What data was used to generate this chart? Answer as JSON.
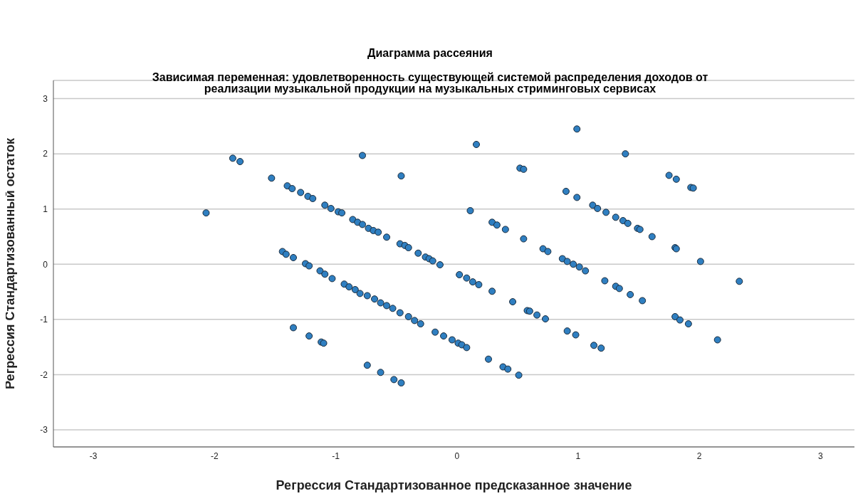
{
  "chart_data": {
    "type": "scatter",
    "title": "Диаграмма рассеяния",
    "subtitle": "Зависимая переменная: удовлетворенность существующей системой распределения доходов от\nреализации музыкальной продукции на музыкальных стриминговых сервисах",
    "xlabel": "Регрессия Стандартизованное предсказанное значение",
    "ylabel": "Регрессия Стандартизованный остаток",
    "x": [
      -2.07,
      -1.85,
      -1.79,
      -1.53,
      -0.78,
      -0.46,
      0.16,
      0.99,
      0.52,
      0.55,
      1.39,
      1.75,
      1.81,
      1.93,
      1.95,
      -1.4,
      -1.36,
      -1.29,
      -1.23,
      -1.19,
      -1.09,
      -1.04,
      -0.98,
      -0.95,
      -0.86,
      -0.82,
      -0.78,
      -0.73,
      -0.69,
      -0.65,
      -0.58,
      -0.47,
      -0.43,
      -0.4,
      -0.32,
      -0.26,
      -0.23,
      -0.2,
      -0.14,
      0.02,
      0.08,
      0.13,
      0.18,
      0.29,
      0.46,
      0.58,
      0.6,
      0.66,
      0.73,
      -1.44,
      -1.41,
      -1.35,
      -1.25,
      -1.22,
      -1.13,
      -1.09,
      -1.03,
      -0.93,
      -0.89,
      -0.84,
      -0.8,
      -0.74,
      -0.68,
      -0.63,
      -0.58,
      -0.53,
      -0.47,
      -0.4,
      -0.35,
      -0.3,
      -0.18,
      -0.11,
      -0.04,
      0.01,
      0.04,
      0.08,
      0.26,
      0.38,
      0.42,
      0.51,
      0.11,
      0.29,
      0.33,
      0.4,
      0.55,
      0.71,
      0.75,
      0.87,
      0.91,
      0.96,
      1.01,
      1.06,
      1.22,
      1.31,
      1.34,
      1.43,
      1.53,
      0.9,
      0.99,
      1.12,
      1.16,
      1.23,
      1.31,
      1.37,
      1.41,
      1.49,
      1.51,
      1.61,
      1.8,
      1.81,
      2.01,
      2.33,
      1.8,
      1.84,
      1.91,
      2.15,
      0.91,
      0.98,
      1.13,
      1.19,
      -1.35,
      -1.22,
      -1.12,
      -1.1,
      -0.74,
      -0.63,
      -0.52,
      -0.46
    ],
    "values": [
      0.93,
      1.92,
      1.86,
      1.56,
      1.97,
      1.6,
      2.17,
      2.45,
      1.74,
      1.72,
      2.0,
      1.61,
      1.54,
      1.39,
      1.38,
      1.42,
      1.37,
      1.3,
      1.23,
      1.19,
      1.07,
      1.01,
      0.95,
      0.93,
      0.81,
      0.76,
      0.72,
      0.65,
      0.61,
      0.58,
      0.49,
      0.37,
      0.34,
      0.3,
      0.2,
      0.13,
      0.1,
      0.06,
      -0.01,
      -0.19,
      -0.25,
      -0.32,
      -0.37,
      -0.49,
      -0.68,
      -0.84,
      -0.85,
      -0.92,
      -0.99,
      0.23,
      0.18,
      0.12,
      0.01,
      -0.03,
      -0.12,
      -0.18,
      -0.26,
      -0.36,
      -0.41,
      -0.46,
      -0.53,
      -0.57,
      -0.63,
      -0.7,
      -0.75,
      -0.8,
      -0.88,
      -0.95,
      -1.02,
      -1.08,
      -1.23,
      -1.3,
      -1.37,
      -1.43,
      -1.46,
      -1.51,
      -1.72,
      -1.86,
      -1.9,
      -2.01,
      0.97,
      0.76,
      0.71,
      0.63,
      0.46,
      0.28,
      0.23,
      0.1,
      0.05,
      0.0,
      -0.05,
      -0.12,
      -0.3,
      -0.4,
      -0.44,
      -0.55,
      -0.66,
      1.32,
      1.21,
      1.07,
      1.01,
      0.94,
      0.85,
      0.79,
      0.74,
      0.65,
      0.63,
      0.5,
      0.3,
      0.28,
      0.05,
      -0.31,
      -0.95,
      -1.01,
      -1.08,
      -1.37,
      -1.21,
      -1.28,
      -1.47,
      -1.52,
      -1.15,
      -1.3,
      -1.41,
      -1.43,
      -1.83,
      -1.96,
      -2.09,
      -2.15
    ],
    "color": "#2f7fc1",
    "marker": "circle",
    "grid": "y",
    "xlim": [
      -3.33,
      3.28
    ],
    "ylim": [
      -3.31,
      3.33
    ],
    "xticks": [
      -3,
      -2,
      -1,
      0,
      1,
      2,
      3
    ],
    "yticks": [
      -3,
      -2,
      -1,
      0,
      1,
      2,
      3
    ]
  }
}
